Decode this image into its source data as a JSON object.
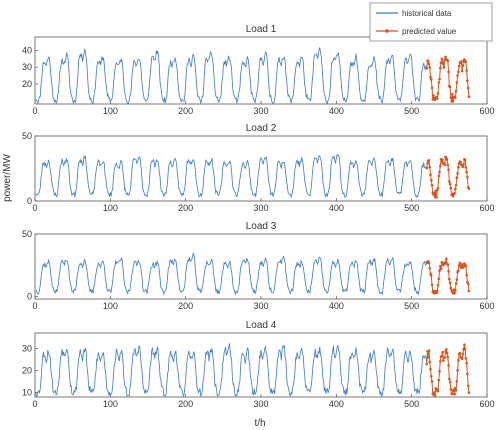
{
  "colors": {
    "historical": "#3a78c2",
    "predicted": "#d9541e",
    "axis": "#555555",
    "background": "#ffffff"
  },
  "chart_data": {
    "type": "line",
    "xlabel": "t/h",
    "ylabel": "power/MW",
    "xlim": [
      0,
      600
    ],
    "xticks": [
      0,
      100,
      200,
      300,
      400,
      500,
      600
    ],
    "legend": {
      "placement": "top-right",
      "entries": [
        "historical data",
        "predicted value"
      ]
    },
    "history_hours": [
      1,
      520
    ],
    "forecast_hours": [
      520,
      576
    ],
    "panels": [
      {
        "title": "Load 1",
        "ylim": [
          8,
          48
        ],
        "yticks": [
          20,
          30,
          40
        ],
        "daily_shape": [
          12,
          11,
          10,
          10,
          10,
          11,
          14,
          19,
          25,
          30,
          32,
          33,
          33,
          32,
          31,
          33,
          35,
          36,
          35,
          32,
          27,
          21,
          16,
          13
        ],
        "day_scale": [
          1.0,
          1.05,
          1.2,
          1.0,
          0.95,
          1.0,
          1.15,
          1.0,
          1.05,
          1.1,
          1.0,
          0.95,
          1.1,
          1.05,
          1.0,
          1.2,
          1.1,
          1.0,
          0.95,
          1.05,
          1.1,
          0.9,
          1.0,
          0.95
        ],
        "noise_seed": 11
      },
      {
        "title": "Load 2",
        "ylim": [
          0,
          50
        ],
        "yticks": [
          0,
          50
        ],
        "daily_shape": [
          6,
          5,
          5,
          5,
          5,
          7,
          11,
          17,
          23,
          27,
          29,
          30,
          29,
          28,
          27,
          28,
          30,
          31,
          30,
          27,
          22,
          16,
          11,
          8
        ],
        "day_scale": [
          1.0,
          1.05,
          1.1,
          1.0,
          0.95,
          1.1,
          1.05,
          1.0,
          1.1,
          1.05,
          1.0,
          0.95,
          1.1,
          1.0,
          1.05,
          1.15,
          1.2,
          1.0,
          1.1,
          1.05,
          1.0,
          0.95,
          1.05,
          1.0
        ],
        "noise_seed": 23
      },
      {
        "title": "Load 3",
        "ylim": [
          -2,
          50
        ],
        "yticks": [
          0,
          50
        ],
        "daily_shape": [
          5,
          4,
          4,
          4,
          4,
          6,
          10,
          15,
          20,
          23,
          25,
          26,
          26,
          25,
          24,
          25,
          27,
          28,
          27,
          24,
          19,
          14,
          9,
          6
        ],
        "day_scale": [
          1.0,
          1.1,
          1.05,
          1.0,
          1.1,
          1.05,
          1.0,
          1.1,
          1.2,
          1.05,
          1.0,
          1.1,
          1.05,
          1.15,
          1.0,
          1.1,
          1.05,
          1.0,
          1.1,
          1.15,
          1.0,
          1.05,
          1.0,
          0.95
        ],
        "noise_seed": 37
      },
      {
        "title": "Load 4",
        "ylim": [
          8,
          37
        ],
        "yticks": [
          10,
          20,
          30
        ],
        "daily_shape": [
          11,
          10,
          10,
          10,
          10,
          11,
          13,
          17,
          21,
          25,
          27,
          28,
          27,
          26,
          25,
          26,
          28,
          29,
          28,
          26,
          22,
          18,
          14,
          12
        ],
        "day_scale": [
          1.0,
          1.1,
          1.05,
          0.95,
          1.0,
          1.1,
          1.05,
          1.0,
          0.95,
          1.05,
          1.1,
          1.0,
          1.05,
          1.1,
          1.0,
          1.05,
          1.1,
          1.0,
          0.95,
          1.05,
          1.0,
          0.95,
          1.05,
          1.0
        ],
        "noise_seed": 53
      }
    ]
  }
}
